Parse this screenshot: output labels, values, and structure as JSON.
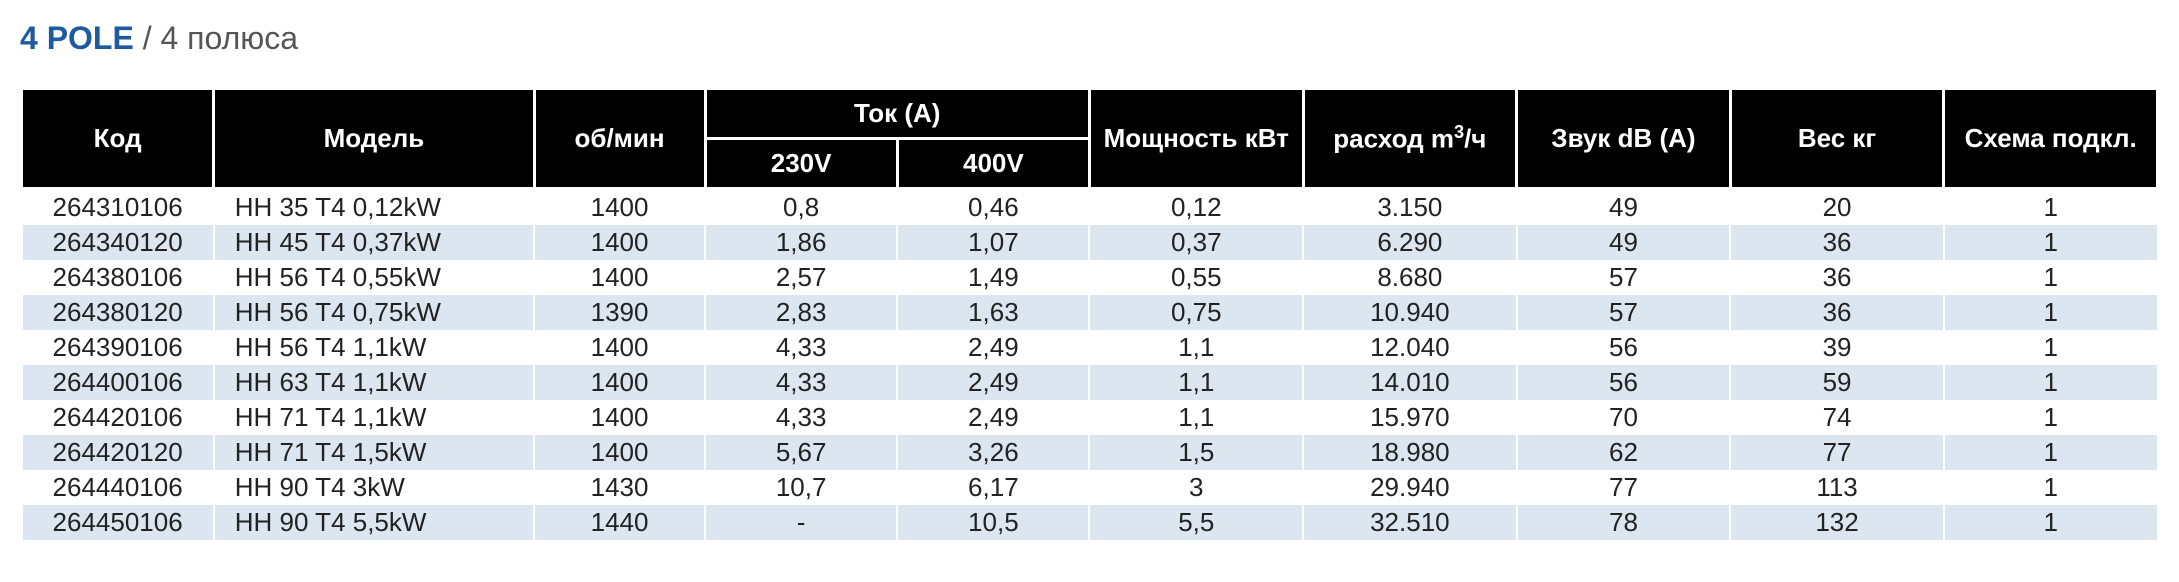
{
  "title": {
    "bold": "4 POLE",
    "sep": " / ",
    "normal": "4 полюса"
  },
  "table": {
    "header": {
      "code": "Код",
      "model": "Модель",
      "rpm": "об/мин",
      "current": "Ток (А)",
      "v230": "230V",
      "v400": "400V",
      "power": "Мощность кВт",
      "flow_pre": "расход m",
      "flow_sup": "3",
      "flow_post": "/ч",
      "sound": "Звук dB (A)",
      "weight": "Вес кг",
      "scheme": "Схема подкл."
    },
    "columns": [
      "code",
      "model",
      "rpm",
      "i230",
      "i400",
      "power",
      "flow",
      "sound",
      "weight",
      "scheme"
    ],
    "rows": [
      {
        "code": "264310106",
        "model": "HH 35 T4 0,12kW",
        "rpm": "1400",
        "i230": "0,8",
        "i400": "0,46",
        "power": "0,12",
        "flow": "3.150",
        "sound": "49",
        "weight": "20",
        "scheme": "1"
      },
      {
        "code": "264340120",
        "model": "HH 45 T4 0,37kW",
        "rpm": "1400",
        "i230": "1,86",
        "i400": "1,07",
        "power": "0,37",
        "flow": "6.290",
        "sound": "49",
        "weight": "36",
        "scheme": "1"
      },
      {
        "code": "264380106",
        "model": "HH 56 T4 0,55kW",
        "rpm": "1400",
        "i230": "2,57",
        "i400": "1,49",
        "power": "0,55",
        "flow": "8.680",
        "sound": "57",
        "weight": "36",
        "scheme": "1"
      },
      {
        "code": "264380120",
        "model": "HH 56 T4 0,75kW",
        "rpm": "1390",
        "i230": "2,83",
        "i400": "1,63",
        "power": "0,75",
        "flow": "10.940",
        "sound": "57",
        "weight": "36",
        "scheme": "1"
      },
      {
        "code": "264390106",
        "model": "HH 56 T4 1,1kW",
        "rpm": "1400",
        "i230": "4,33",
        "i400": "2,49",
        "power": "1,1",
        "flow": "12.040",
        "sound": "56",
        "weight": "39",
        "scheme": "1"
      },
      {
        "code": "264400106",
        "model": "HH 63 T4 1,1kW",
        "rpm": "1400",
        "i230": "4,33",
        "i400": "2,49",
        "power": "1,1",
        "flow": "14.010",
        "sound": "56",
        "weight": "59",
        "scheme": "1"
      },
      {
        "code": "264420106",
        "model": "HH 71 T4 1,1kW",
        "rpm": "1400",
        "i230": "4,33",
        "i400": "2,49",
        "power": "1,1",
        "flow": "15.970",
        "sound": "70",
        "weight": "74",
        "scheme": "1"
      },
      {
        "code": "264420120",
        "model": "HH 71 T4 1,5kW",
        "rpm": "1400",
        "i230": "5,67",
        "i400": "3,26",
        "power": "1,5",
        "flow": "18.980",
        "sound": "62",
        "weight": "77",
        "scheme": "1"
      },
      {
        "code": "264440106",
        "model": "HH 90 T4 3kW",
        "rpm": "1430",
        "i230": "10,7",
        "i400": "6,17",
        "power": "3",
        "flow": "29.940",
        "sound": "77",
        "weight": "113",
        "scheme": "1"
      },
      {
        "code": "264450106",
        "model": "HH 90 T4 5,5kW",
        "rpm": "1440",
        "i230": "-",
        "i400": "10,5",
        "power": "5,5",
        "flow": "32.510",
        "sound": "78",
        "weight": "132",
        "scheme": "1"
      }
    ],
    "colors": {
      "header_bg": "#000000",
      "header_fg": "#ffffff",
      "row_odd": "#ffffff",
      "row_even": "#dbe6f1",
      "title_accent": "#1e5a9e",
      "title_sub": "#555555",
      "body_text": "#222222"
    },
    "font_sizes": {
      "title": 32,
      "header": 26,
      "body": 26
    }
  }
}
